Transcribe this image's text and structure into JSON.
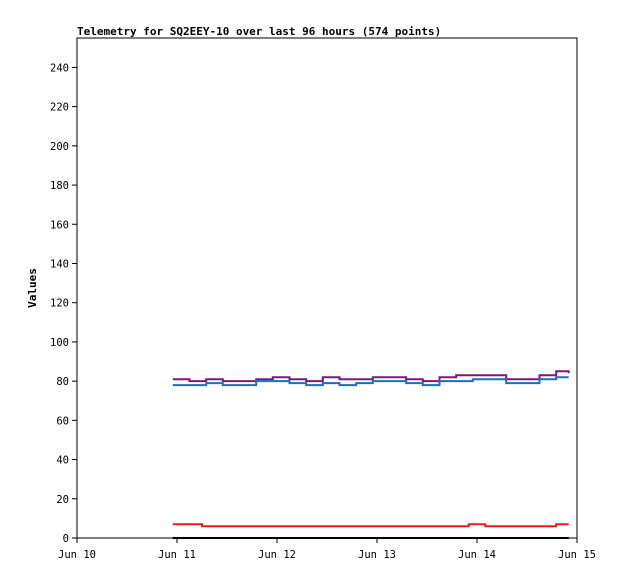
{
  "chart_data": {
    "type": "line",
    "title": "Telemetry for SQ2EEY-10 over last 96 hours (574 points)",
    "xlabel": "",
    "ylabel": "Values",
    "xlim": [
      "2021-06-10",
      "2021-06-15"
    ],
    "ylim": [
      0,
      255
    ],
    "x_ticks": [
      "Jun 10",
      "Jun 11",
      "Jun 12",
      "Jun 13",
      "Jun 14",
      "Jun 15"
    ],
    "y_ticks": [
      0,
      20,
      40,
      60,
      80,
      100,
      120,
      140,
      160,
      180,
      200,
      220,
      240
    ],
    "grid": false,
    "legend": "none",
    "series": [
      {
        "color": "#7b1a7b",
        "x": [
          "2021-06-10T23:00",
          "2021-06-11T03:00",
          "2021-06-11T07:00",
          "2021-06-11T11:00",
          "2021-06-11T15:00",
          "2021-06-11T19:00",
          "2021-06-11T23:00",
          "2021-06-12T03:00",
          "2021-06-12T07:00",
          "2021-06-12T11:00",
          "2021-06-12T15:00",
          "2021-06-12T19:00",
          "2021-06-12T23:00",
          "2021-06-13T03:00",
          "2021-06-13T07:00",
          "2021-06-13T11:00",
          "2021-06-13T15:00",
          "2021-06-13T19:00",
          "2021-06-13T23:00",
          "2021-06-14T03:00",
          "2021-06-14T07:00",
          "2021-06-14T11:00",
          "2021-06-14T15:00",
          "2021-06-14T19:00",
          "2021-06-14T22:00"
        ],
        "y": [
          81,
          80,
          81,
          80,
          80,
          81,
          82,
          81,
          80,
          82,
          81,
          81,
          82,
          82,
          81,
          80,
          82,
          83,
          83,
          83,
          81,
          81,
          83,
          85,
          84
        ]
      },
      {
        "color": "#1f6eb8",
        "x": [
          "2021-06-10T23:00",
          "2021-06-11T03:00",
          "2021-06-11T07:00",
          "2021-06-11T11:00",
          "2021-06-11T15:00",
          "2021-06-11T19:00",
          "2021-06-11T23:00",
          "2021-06-12T03:00",
          "2021-06-12T07:00",
          "2021-06-12T11:00",
          "2021-06-12T15:00",
          "2021-06-12T19:00",
          "2021-06-12T23:00",
          "2021-06-13T03:00",
          "2021-06-13T07:00",
          "2021-06-13T11:00",
          "2021-06-13T15:00",
          "2021-06-13T19:00",
          "2021-06-13T23:00",
          "2021-06-14T03:00",
          "2021-06-14T07:00",
          "2021-06-14T11:00",
          "2021-06-14T15:00",
          "2021-06-14T19:00",
          "2021-06-14T22:00"
        ],
        "y": [
          78,
          78,
          79,
          78,
          78,
          80,
          80,
          79,
          78,
          79,
          78,
          79,
          80,
          80,
          79,
          78,
          80,
          80,
          81,
          81,
          79,
          79,
          81,
          82,
          82
        ]
      },
      {
        "color": "#e02020",
        "x": [
          "2021-06-10T23:00",
          "2021-06-11T05:00",
          "2021-06-11T06:00",
          "2021-06-13T21:00",
          "2021-06-13T22:00",
          "2021-06-14T01:00",
          "2021-06-14T02:00",
          "2021-06-14T18:00",
          "2021-06-14T19:00",
          "2021-06-14T22:00"
        ],
        "y": [
          7,
          7,
          6,
          6,
          7,
          7,
          6,
          6,
          7,
          7
        ]
      },
      {
        "color": "#000000",
        "x": [
          "2021-06-10T23:00",
          "2021-06-14T22:00"
        ],
        "y": [
          0,
          0
        ]
      }
    ]
  }
}
